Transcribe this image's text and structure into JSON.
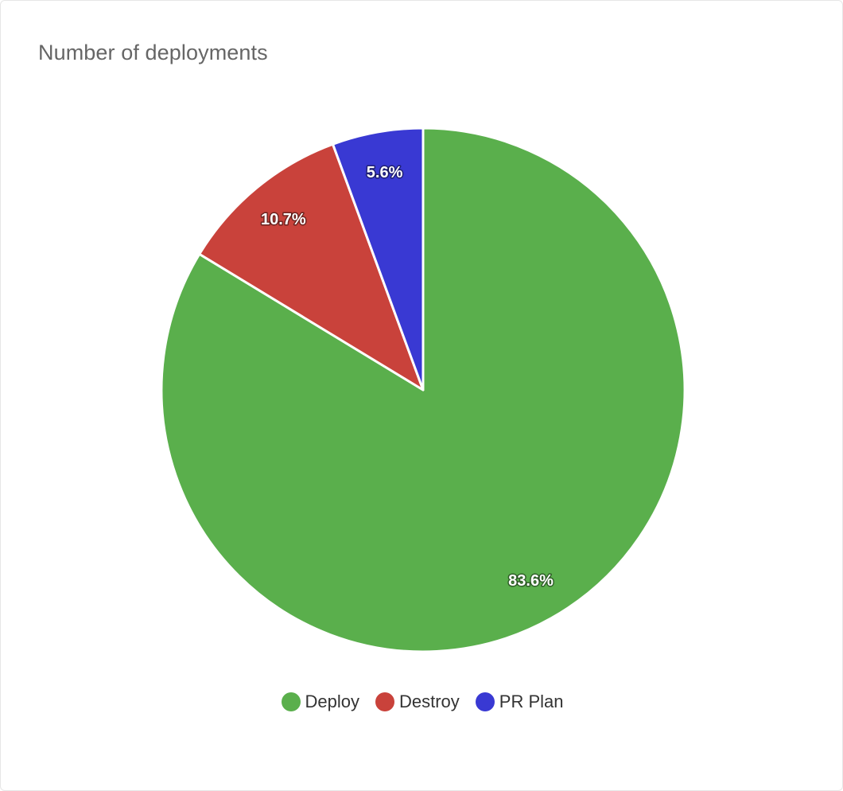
{
  "chart_data": {
    "type": "pie",
    "title": "Number of deployments",
    "categories": [
      "Deploy",
      "Destroy",
      "PR Plan"
    ],
    "values": [
      83.6,
      10.7,
      5.6
    ],
    "value_labels": [
      "83.6%",
      "10.7%",
      "5.6%"
    ],
    "colors": [
      "#5aaf4c",
      "#c9423b",
      "#3939d3"
    ],
    "start_angle": "12 o'clock",
    "direction": "clockwise",
    "legend_position": "bottom-center"
  },
  "legend": {
    "items": [
      {
        "label": "Deploy",
        "color": "#5aaf4c"
      },
      {
        "label": "Destroy",
        "color": "#c9423b"
      },
      {
        "label": "PR Plan",
        "color": "#3939d3"
      }
    ]
  }
}
